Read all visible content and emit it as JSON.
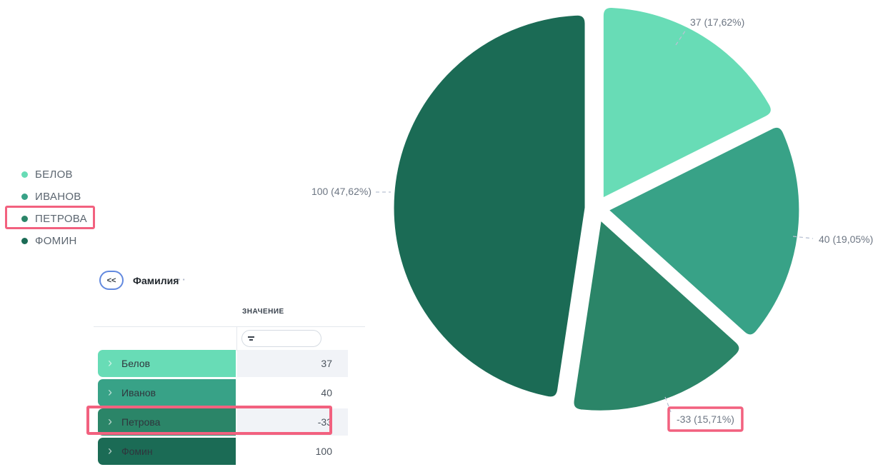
{
  "chart_data": {
    "type": "pie",
    "title": "",
    "categories": [
      "БЕЛОВ",
      "ИВАНОВ",
      "ПЕТРОВА",
      "ФОМИН"
    ],
    "values": [
      37,
      40,
      -33,
      100
    ],
    "labels": [
      "37 (17,62%)",
      "40 (19,05%)",
      "-33 (15,71%)",
      "100 (47,62%)"
    ],
    "percents": [
      "17,62%",
      "19,05%",
      "15,71%",
      "47,62%"
    ],
    "colors": [
      "#68dcb6",
      "#38a287",
      "#2b8568",
      "#1b6b55"
    ],
    "legend_position": "left",
    "label_line_style": "dashed",
    "highlighted_category": "ПЕТРОВА"
  },
  "legend": {
    "items": [
      {
        "label": "БЕЛОВ",
        "highlight": false
      },
      {
        "label": "ИВАНОВ",
        "highlight": false
      },
      {
        "label": "ПЕТРОВА",
        "highlight": true
      },
      {
        "label": "ФОМИН",
        "highlight": false
      }
    ]
  },
  "panel": {
    "collapse_button_label": "<<",
    "field_title": "Фамилия",
    "field_more": "··",
    "table": {
      "value_column_header": "ЗНАЧЕНИЕ",
      "filter_value": "",
      "rows": [
        {
          "name": "Белов",
          "value": "37",
          "highlight": false
        },
        {
          "name": "Иванов",
          "value": "40",
          "highlight": false
        },
        {
          "name": "Петрова",
          "value": "-33",
          "highlight": true
        },
        {
          "name": "Фомин",
          "value": "100",
          "highlight": false
        }
      ]
    }
  },
  "annotations": {
    "highlight_color": "#f2617f",
    "highlighted_pie_label": "-33 (15,71%)"
  }
}
